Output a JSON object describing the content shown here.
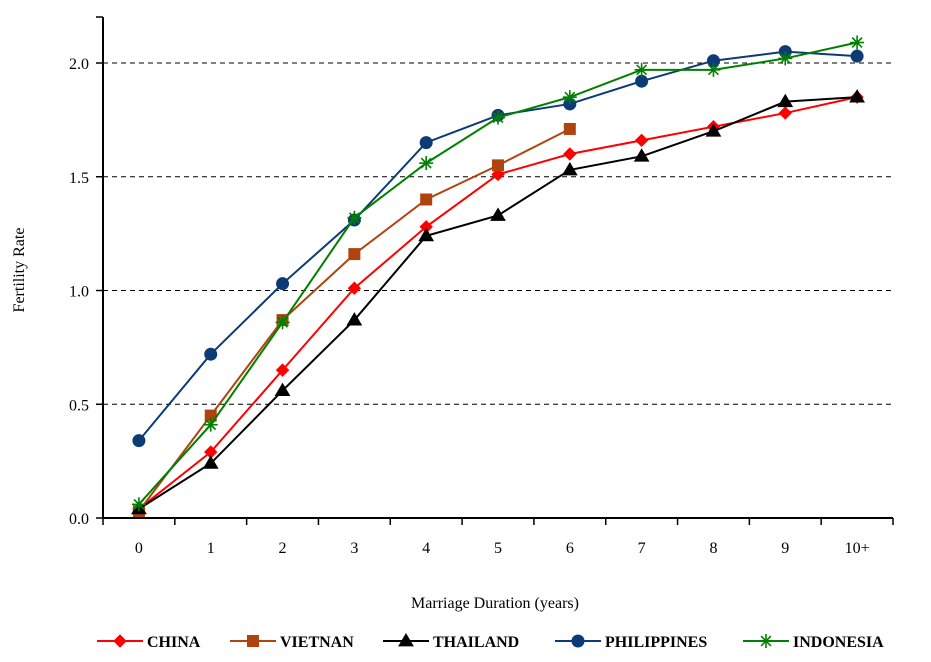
{
  "chart_data": {
    "type": "line",
    "title": "",
    "xlabel": "Marriage Duration (years)",
    "ylabel": "Fertility Rate",
    "categories": [
      "0",
      "1",
      "2",
      "3",
      "4",
      "5",
      "6",
      "7",
      "8",
      "9",
      "10+"
    ],
    "ylim": [
      0,
      2.0
    ],
    "yticks": [
      "0.0",
      "0.5",
      "1.0",
      "1.5",
      "2.0"
    ],
    "ytick_values": [
      0,
      0.5,
      1.0,
      1.5,
      2.0
    ],
    "grid": "horizontal dashed",
    "legend_position": "bottom",
    "series": [
      {
        "name": "CHINA",
        "color": "#ff0000",
        "marker": "diamond",
        "values": [
          0.04,
          0.29,
          0.65,
          1.01,
          1.28,
          1.51,
          1.6,
          1.66,
          1.72,
          1.78,
          1.85
        ]
      },
      {
        "name": "VIETNAN",
        "color": "#b0440e",
        "marker": "square",
        "values": [
          0.03,
          0.45,
          0.87,
          1.16,
          1.4,
          1.55,
          1.71,
          null,
          null,
          null,
          null
        ]
      },
      {
        "name": "THAILAND",
        "color": "#000000",
        "marker": "triangle",
        "values": [
          0.04,
          0.24,
          0.56,
          0.87,
          1.24,
          1.33,
          1.53,
          1.59,
          1.7,
          1.83,
          1.85
        ]
      },
      {
        "name": "PHILIPPINES",
        "color": "#0d3b75",
        "marker": "circle",
        "values": [
          0.34,
          0.72,
          1.03,
          1.31,
          1.65,
          1.77,
          1.82,
          1.92,
          2.01,
          2.05,
          2.03
        ]
      },
      {
        "name": "INDONESIA",
        "color": "#008000",
        "marker": "asterisk",
        "values": [
          0.06,
          0.41,
          0.86,
          1.32,
          1.56,
          1.76,
          1.85,
          1.97,
          1.97,
          2.02,
          2.09
        ]
      }
    ]
  }
}
